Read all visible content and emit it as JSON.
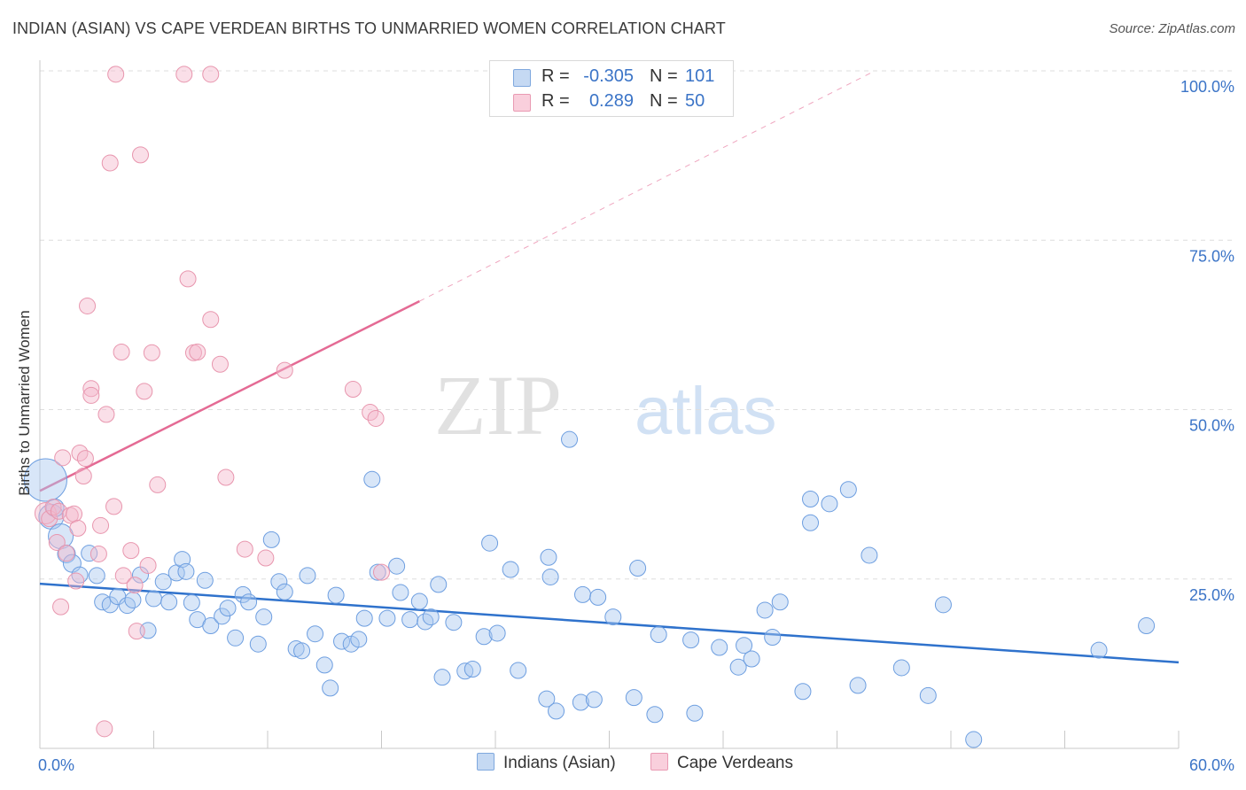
{
  "title": "INDIAN (ASIAN) VS CAPE VERDEAN BIRTHS TO UNMARRIED WOMEN CORRELATION CHART",
  "source": "Source: ZipAtlas.com",
  "watermark": {
    "zip": "ZIP",
    "atlas": "atlas"
  },
  "legend": {
    "rows": [
      {
        "r_label": "R =",
        "r_value": "-0.305",
        "n_label": "N =",
        "n_value": "101",
        "color": "#a9c8f0"
      },
      {
        "r_label": "R =",
        "r_value": "0.289",
        "n_label": "N =",
        "n_value": "50",
        "color": "#f5b8cb"
      }
    ]
  },
  "bottom_legend": [
    {
      "label": "Indians (Asian)",
      "color": "#a9c8f0"
    },
    {
      "label": "Cape Verdeans",
      "color": "#f5b8cb"
    }
  ],
  "chart_data": {
    "type": "scatter",
    "title": "INDIAN (ASIAN) VS CAPE VERDEAN BIRTHS TO UNMARRIED WOMEN CORRELATION CHART",
    "xlabel": "",
    "ylabel": "Births to Unmarried Women",
    "xlim": [
      0,
      60
    ],
    "ylim": [
      0,
      100
    ],
    "x_tick_labels": [
      "0.0%",
      "60.0%"
    ],
    "y_tick_labels": [
      "100.0%",
      "75.0%",
      "50.0%",
      "25.0%"
    ],
    "y_ticks": [
      100,
      75,
      50,
      25
    ],
    "grid": true,
    "legend_position": "top-center",
    "series": [
      {
        "name": "Indians (Asian)",
        "color": "#a9c8f0",
        "stroke": "#6d9ee0",
        "trend": {
          "x": [
            0,
            60
          ],
          "y": [
            24.3,
            12.7
          ],
          "color": "#2f72cc"
        },
        "points": [
          [
            0.3,
            39.6,
            24
          ],
          [
            0.6,
            34.2,
            14
          ],
          [
            0.8,
            35.5,
            10
          ],
          [
            1.1,
            31.3,
            14
          ],
          [
            1.4,
            28.7,
            10
          ],
          [
            1.7,
            27.3,
            10
          ],
          [
            2.1,
            25.6,
            9
          ],
          [
            2.6,
            28.8,
            9
          ],
          [
            3.0,
            25.5,
            9
          ],
          [
            3.3,
            21.6,
            9
          ],
          [
            3.7,
            21.2,
            9
          ],
          [
            4.1,
            22.4,
            9
          ],
          [
            4.6,
            21.1,
            9
          ],
          [
            4.9,
            21.9,
            9
          ],
          [
            5.3,
            25.6,
            9
          ],
          [
            5.7,
            17.4,
            9
          ],
          [
            6.0,
            22.1,
            9
          ],
          [
            6.5,
            24.6,
            9
          ],
          [
            6.8,
            21.6,
            9
          ],
          [
            7.2,
            25.9,
            9
          ],
          [
            7.5,
            27.9,
            9
          ],
          [
            7.7,
            26.1,
            9
          ],
          [
            8.0,
            21.5,
            9
          ],
          [
            8.3,
            19.0,
            9
          ],
          [
            8.7,
            24.8,
            9
          ],
          [
            9.0,
            18.1,
            9
          ],
          [
            9.6,
            19.5,
            9
          ],
          [
            9.9,
            20.7,
            9
          ],
          [
            10.3,
            16.3,
            9
          ],
          [
            10.7,
            22.7,
            9
          ],
          [
            11.0,
            21.6,
            9
          ],
          [
            11.5,
            15.4,
            9
          ],
          [
            11.8,
            19.4,
            9
          ],
          [
            12.2,
            30.8,
            9
          ],
          [
            12.6,
            24.6,
            9
          ],
          [
            12.9,
            23.1,
            9
          ],
          [
            13.5,
            14.7,
            9
          ],
          [
            13.8,
            14.4,
            9
          ],
          [
            14.1,
            25.5,
            9
          ],
          [
            14.5,
            16.9,
            9
          ],
          [
            15.0,
            12.3,
            9
          ],
          [
            15.3,
            8.9,
            9
          ],
          [
            15.6,
            22.6,
            9
          ],
          [
            15.9,
            15.8,
            9
          ],
          [
            16.4,
            15.4,
            9
          ],
          [
            16.8,
            16.1,
            9
          ],
          [
            17.1,
            19.2,
            9
          ],
          [
            17.5,
            39.7,
            9
          ],
          [
            17.8,
            26.0,
            9
          ],
          [
            18.3,
            19.2,
            9
          ],
          [
            18.8,
            26.9,
            9
          ],
          [
            19.0,
            23.0,
            9
          ],
          [
            19.5,
            19.0,
            9
          ],
          [
            20.0,
            21.7,
            9
          ],
          [
            20.3,
            18.7,
            9
          ],
          [
            20.6,
            19.4,
            9
          ],
          [
            21.0,
            24.2,
            9
          ],
          [
            21.2,
            10.5,
            9
          ],
          [
            21.8,
            18.6,
            9
          ],
          [
            22.4,
            11.4,
            9
          ],
          [
            22.8,
            11.7,
            9
          ],
          [
            23.4,
            16.5,
            9
          ],
          [
            23.7,
            30.3,
            9
          ],
          [
            24.1,
            17.0,
            9
          ],
          [
            24.8,
            26.4,
            9
          ],
          [
            25.2,
            11.5,
            9
          ],
          [
            26.7,
            7.3,
            9
          ],
          [
            26.8,
            28.2,
            9
          ],
          [
            26.9,
            25.3,
            9
          ],
          [
            27.2,
            5.5,
            9
          ],
          [
            27.9,
            45.6,
            9
          ],
          [
            28.5,
            6.8,
            9
          ],
          [
            28.6,
            22.7,
            9
          ],
          [
            29.2,
            7.2,
            9
          ],
          [
            29.4,
            22.3,
            9
          ],
          [
            30.2,
            19.4,
            9
          ],
          [
            31.3,
            7.5,
            9
          ],
          [
            31.5,
            26.6,
            9
          ],
          [
            32.4,
            5.0,
            9
          ],
          [
            32.6,
            16.8,
            9
          ],
          [
            34.3,
            16.0,
            9
          ],
          [
            34.5,
            5.2,
            9
          ],
          [
            35.8,
            14.9,
            9
          ],
          [
            36.8,
            12.0,
            9
          ],
          [
            37.1,
            15.2,
            9
          ],
          [
            37.5,
            13.2,
            9
          ],
          [
            38.2,
            20.4,
            9
          ],
          [
            38.6,
            16.4,
            9
          ],
          [
            39.0,
            21.6,
            9
          ],
          [
            40.2,
            8.4,
            9
          ],
          [
            40.6,
            36.8,
            9
          ],
          [
            40.6,
            33.3,
            9
          ],
          [
            41.6,
            36.1,
            9
          ],
          [
            42.6,
            38.2,
            9
          ],
          [
            43.1,
            9.3,
            9
          ],
          [
            43.7,
            28.5,
            9
          ],
          [
            45.4,
            11.9,
            9
          ],
          [
            46.8,
            7.8,
            9
          ],
          [
            47.6,
            21.2,
            9
          ],
          [
            49.2,
            1.3,
            9
          ],
          [
            58.3,
            18.1,
            9
          ],
          [
            55.8,
            14.5,
            9
          ]
        ]
      },
      {
        "name": "Cape Verdeans",
        "color": "#f5b8cb",
        "stroke": "#e896ae",
        "trend": {
          "x": [
            0,
            20
          ],
          "y": [
            38.0,
            66.0
          ],
          "dash_to": [
            44,
            100
          ],
          "color": "#e46a94"
        },
        "points": [
          [
            0.3,
            34.7,
            12
          ],
          [
            0.5,
            33.9,
            9
          ],
          [
            0.7,
            35.6,
            9
          ],
          [
            0.9,
            30.4,
            9
          ],
          [
            1.0,
            35.0,
            9
          ],
          [
            1.1,
            20.9,
            9
          ],
          [
            1.2,
            42.9,
            9
          ],
          [
            1.4,
            28.8,
            9
          ],
          [
            1.6,
            34.4,
            9
          ],
          [
            1.8,
            34.6,
            9
          ],
          [
            1.9,
            24.7,
            9
          ],
          [
            2.0,
            32.5,
            9
          ],
          [
            2.1,
            43.6,
            9
          ],
          [
            2.3,
            40.2,
            9
          ],
          [
            2.4,
            42.8,
            9
          ],
          [
            2.5,
            65.3,
            9
          ],
          [
            2.7,
            53.1,
            9
          ],
          [
            2.7,
            52.1,
            9
          ],
          [
            3.1,
            28.7,
            9
          ],
          [
            3.2,
            32.9,
            9
          ],
          [
            3.4,
            2.9,
            9
          ],
          [
            3.5,
            49.3,
            9
          ],
          [
            3.7,
            86.4,
            9
          ],
          [
            3.9,
            35.7,
            9
          ],
          [
            4.0,
            99.5,
            9
          ],
          [
            4.3,
            58.5,
            9
          ],
          [
            4.4,
            25.5,
            9
          ],
          [
            4.8,
            29.2,
            9
          ],
          [
            5.0,
            24.1,
            9
          ],
          [
            5.1,
            17.3,
            9
          ],
          [
            5.3,
            87.6,
            9
          ],
          [
            5.5,
            52.7,
            9
          ],
          [
            5.7,
            27.0,
            9
          ],
          [
            5.9,
            58.4,
            9
          ],
          [
            6.2,
            38.9,
            9
          ],
          [
            7.6,
            99.5,
            9
          ],
          [
            7.8,
            69.3,
            9
          ],
          [
            8.1,
            58.4,
            9
          ],
          [
            8.3,
            58.5,
            9
          ],
          [
            9.0,
            99.5,
            9
          ],
          [
            9.0,
            63.3,
            9
          ],
          [
            9.5,
            56.7,
            9
          ],
          [
            9.8,
            40.0,
            9
          ],
          [
            10.8,
            29.4,
            9
          ],
          [
            11.9,
            28.1,
            9
          ],
          [
            12.9,
            55.8,
            9
          ],
          [
            16.5,
            53.0,
            9
          ],
          [
            17.4,
            49.6,
            9
          ],
          [
            17.7,
            48.7,
            9
          ],
          [
            18.0,
            26.0,
            9
          ]
        ]
      }
    ]
  }
}
